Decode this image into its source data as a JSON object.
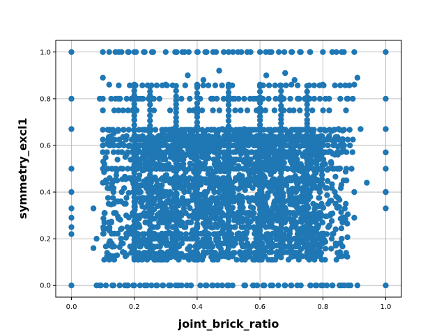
{
  "chart_data": {
    "type": "scatter",
    "xlabel": "joint_brick_ratio",
    "ylabel": "symmetry_excl1",
    "xlim": [
      -0.05,
      1.05
    ],
    "ylim": [
      -0.05,
      1.05
    ],
    "xticks": [
      "0.0",
      "0.2",
      "0.4",
      "0.6",
      "0.8",
      "1.0"
    ],
    "yticks": [
      "0.0",
      "0.2",
      "0.4",
      "0.6",
      "0.8",
      "1.0"
    ],
    "grid": true,
    "marker_color": "#1f77b4",
    "series": [
      {
        "points_note_free": true,
        "x_points": [
          0.0,
          0.0,
          0.0,
          0.0,
          0.0,
          0.0,
          0.0,
          0.0,
          0.0,
          0.0,
          1.0,
          1.0,
          1.0,
          1.0,
          1.0,
          1.0,
          1.0,
          1.0,
          1.0,
          0.09,
          0.13,
          0.17,
          0.18,
          0.2,
          0.24,
          0.27,
          0.29,
          0.31,
          0.34,
          0.38,
          0.41,
          0.43,
          0.45,
          0.5,
          0.55,
          0.58,
          0.61,
          0.64,
          0.68,
          0.7,
          0.73,
          0.76,
          0.78,
          0.8,
          0.83,
          0.86,
          0.88,
          0.91,
          0.08,
          0.1,
          0.12,
          0.15,
          0.18,
          0.2,
          0.23,
          0.26,
          0.3,
          0.33,
          0.36,
          0.4,
          0.43,
          0.46,
          0.5,
          0.53,
          0.57,
          0.6,
          0.63,
          0.66,
          0.7,
          0.73,
          0.76,
          0.8,
          0.83,
          0.86,
          0.9,
          0.1,
          0.12,
          0.37,
          0.42,
          0.47,
          0.62,
          0.68,
          0.71,
          0.91,
          0.2,
          0.3,
          0.4,
          0.5,
          0.6,
          0.7,
          0.8,
          0.9,
          0.09,
          0.15,
          0.22,
          0.28,
          0.35,
          0.45,
          0.52,
          0.58,
          0.65,
          0.72,
          0.82,
          0.88,
          0.07,
          0.1,
          0.13,
          0.16,
          0.25,
          0.33,
          0.48,
          0.55,
          0.67,
          0.75,
          0.85,
          0.92,
          0.94,
          0.9,
          0.07,
          0.08,
          0.12,
          0.18,
          0.86,
          0.9,
          0.87
        ],
        "y_points": [
          0.0,
          0.22,
          0.25,
          0.29,
          0.33,
          0.4,
          0.5,
          0.67,
          0.8,
          1.0,
          0.0,
          0.33,
          0.4,
          0.5,
          0.57,
          0.67,
          0.8,
          1.0,
          0.4,
          0.0,
          0.0,
          0.0,
          0.0,
          0.0,
          0.0,
          0.0,
          0.0,
          0.0,
          0.0,
          0.0,
          0.0,
          0.0,
          0.0,
          0.0,
          0.0,
          0.0,
          0.0,
          0.0,
          0.0,
          0.0,
          0.0,
          0.0,
          0.0,
          0.0,
          0.0,
          0.0,
          0.0,
          0.0,
          0.0,
          1.0,
          1.0,
          1.0,
          1.0,
          1.0,
          1.0,
          1.0,
          1.0,
          1.0,
          1.0,
          1.0,
          1.0,
          1.0,
          1.0,
          1.0,
          1.0,
          1.0,
          1.0,
          1.0,
          1.0,
          1.0,
          1.0,
          1.0,
          1.0,
          1.0,
          1.0,
          0.89,
          0.86,
          0.9,
          0.88,
          0.92,
          0.9,
          0.91,
          0.88,
          0.89,
          0.86,
          0.86,
          0.86,
          0.86,
          0.86,
          0.86,
          0.86,
          0.86,
          0.8,
          0.8,
          0.8,
          0.8,
          0.8,
          0.8,
          0.8,
          0.8,
          0.8,
          0.8,
          0.8,
          0.8,
          0.33,
          0.44,
          0.44,
          0.4,
          0.67,
          0.67,
          0.67,
          0.67,
          0.67,
          0.67,
          0.67,
          0.67,
          0.44,
          0.4,
          0.16,
          0.2,
          0.13,
          0.75,
          0.2,
          0.29,
          0.33
        ]
      }
    ],
    "dense_region": {
      "x_range": [
        0.1,
        0.85
      ],
      "y_range": [
        0.12,
        0.67
      ],
      "approx_count": 2400
    }
  }
}
